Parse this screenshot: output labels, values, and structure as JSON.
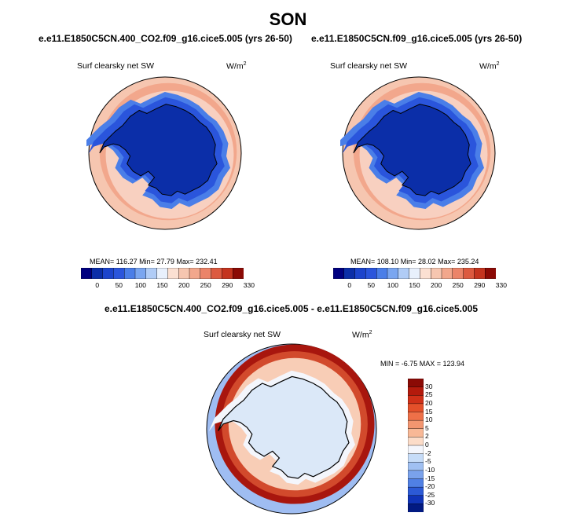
{
  "page": {
    "title": "SON"
  },
  "colors": {
    "coast": "#000000",
    "land_low": "#0b2ea8",
    "ocean_pack": "#2a55dc",
    "ocean_edge": "#4a7ee8",
    "ocean_open": "#f6c6b0",
    "ocean_mid": "#f2a78c",
    "diff_land": "#dbe8f8",
    "diff_neg": "#9fbdf2",
    "diff_pos_low": "#f8cdb6",
    "diff_pos_high": "#a8160e"
  },
  "panels": [
    {
      "run_title": "e.e11.E1850C5CN.400_CO2.f09_g16.cice5.005 (yrs 26-50)",
      "var_label": "Surf clearsky net SW",
      "units_base": "W/m",
      "units_exp": "2",
      "stats": "MEAN= 116.27  Min=  27.79  Max= 232.41",
      "map_icon": "antarctic-polar-map"
    },
    {
      "run_title": "e.e11.E1850C5CN.f09_g16.cice5.005 (yrs 26-50)",
      "var_label": "Surf clearsky net SW",
      "units_base": "W/m",
      "units_exp": "2",
      "stats": "MEAN= 108.10  Min=  28.02  Max= 235.24",
      "map_icon": "antarctic-polar-map"
    }
  ],
  "diff": {
    "title": "e.e11.E1850C5CN.400_CO2.f09_g16.cice5.005 - e.e11.E1850C5CN.f09_g16.cice5.005",
    "var_label": "Surf clearsky net SW",
    "units_base": "W/m",
    "units_exp": "2",
    "stats": "MIN =  -6.75 MAX = 123.94",
    "map_icon": "antarctic-difference-map"
  },
  "chart_data": [
    {
      "type": "heatmap",
      "title": "e.e11.E1850C5CN.400_CO2.f09_g16.cice5.005 (yrs 26-50)",
      "variable": "Surf clearsky net SW",
      "units": "W/m2",
      "stats": {
        "mean": 116.27,
        "min": 27.79,
        "max": 232.41
      },
      "colorbar": {
        "orientation": "horizontal",
        "tick_labels": [
          "0",
          "50",
          "100",
          "150",
          "200",
          "250",
          "290",
          "330"
        ],
        "colors": [
          "#000080",
          "#0b2ea8",
          "#1c44cc",
          "#2a55dc",
          "#4a7ee8",
          "#7aa6f0",
          "#b0ccf6",
          "#e8f0fc",
          "#fbe0d2",
          "#f6c6b0",
          "#f2a78c",
          "#eb8469",
          "#dc5a40",
          "#c4341f",
          "#8b0a05"
        ]
      }
    },
    {
      "type": "heatmap",
      "title": "e.e11.E1850C5CN.f09_g16.cice5.005 (yrs 26-50)",
      "variable": "Surf clearsky net SW",
      "units": "W/m2",
      "stats": {
        "mean": 108.1,
        "min": 28.02,
        "max": 235.24
      },
      "colorbar": {
        "orientation": "horizontal",
        "tick_labels": [
          "0",
          "50",
          "100",
          "150",
          "200",
          "250",
          "290",
          "330"
        ],
        "colors": [
          "#000080",
          "#0b2ea8",
          "#1c44cc",
          "#2a55dc",
          "#4a7ee8",
          "#7aa6f0",
          "#b0ccf6",
          "#e8f0fc",
          "#fbe0d2",
          "#f6c6b0",
          "#f2a78c",
          "#eb8469",
          "#dc5a40",
          "#c4341f",
          "#8b0a05"
        ]
      }
    },
    {
      "type": "heatmap",
      "title": "e.e11.E1850C5CN.400_CO2.f09_g16.cice5.005 - e.e11.E1850C5CN.f09_g16.cice5.005",
      "variable": "Surf clearsky net SW",
      "units": "W/m2",
      "stats": {
        "min": -6.75,
        "max": 123.94
      },
      "colorbar": {
        "orientation": "vertical",
        "tick_labels": [
          "30",
          "25",
          "20",
          "15",
          "10",
          "5",
          "2",
          "0",
          "-2",
          "-5",
          "-10",
          "-15",
          "-20",
          "-25",
          "-30"
        ],
        "colors": [
          "#8b0a05",
          "#b41a0c",
          "#d03018",
          "#e4502a",
          "#ee7048",
          "#f39670",
          "#f8b896",
          "#fcdcc8",
          "#f4f6fc",
          "#c6dcf8",
          "#a0c0f2",
          "#7aa2ec",
          "#5080e4",
          "#2c5ad6",
          "#1034b8",
          "#021a82"
        ]
      }
    }
  ]
}
